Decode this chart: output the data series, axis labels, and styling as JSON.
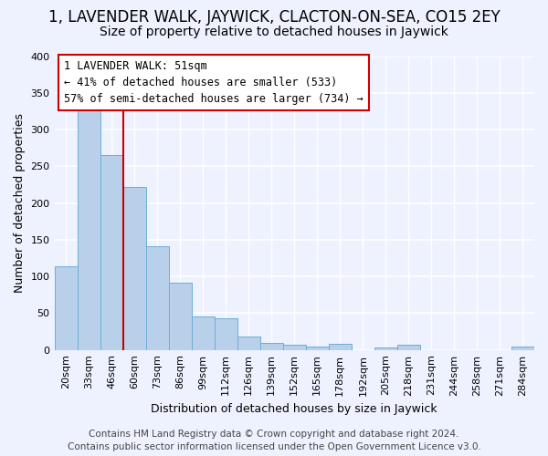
{
  "title": "1, LAVENDER WALK, JAYWICK, CLACTON-ON-SEA, CO15 2EY",
  "subtitle": "Size of property relative to detached houses in Jaywick",
  "xlabel": "Distribution of detached houses by size in Jaywick",
  "ylabel": "Number of detached properties",
  "bar_color": "#b8d0ea",
  "bar_edge_color": "#6aaed6",
  "categories": [
    "20sqm",
    "33sqm",
    "46sqm",
    "60sqm",
    "73sqm",
    "86sqm",
    "99sqm",
    "112sqm",
    "126sqm",
    "139sqm",
    "152sqm",
    "165sqm",
    "178sqm",
    "192sqm",
    "205sqm",
    "218sqm",
    "231sqm",
    "244sqm",
    "258sqm",
    "271sqm",
    "284sqm"
  ],
  "values": [
    114,
    333,
    265,
    222,
    141,
    91,
    45,
    43,
    18,
    10,
    7,
    5,
    8,
    0,
    3,
    7,
    0,
    0,
    0,
    0,
    5
  ],
  "red_line_x": 2.5,
  "annotation_text": "1 LAVENDER WALK: 51sqm\n← 41% of detached houses are smaller (533)\n57% of semi-detached houses are larger (734) →",
  "ylim": [
    0,
    400
  ],
  "yticks": [
    0,
    50,
    100,
    150,
    200,
    250,
    300,
    350,
    400
  ],
  "footer_line1": "Contains HM Land Registry data © Crown copyright and database right 2024.",
  "footer_line2": "Contains public sector information licensed under the Open Government Licence v3.0.",
  "background_color": "#eef2ff",
  "grid_color": "#ffffff",
  "annotation_box_color": "#ffffff",
  "annotation_box_edge_color": "#cc0000",
  "red_line_color": "#cc0000",
  "title_fontsize": 12,
  "subtitle_fontsize": 10,
  "axis_label_fontsize": 9,
  "tick_fontsize": 8,
  "annotation_fontsize": 8.5,
  "footer_fontsize": 7.5
}
